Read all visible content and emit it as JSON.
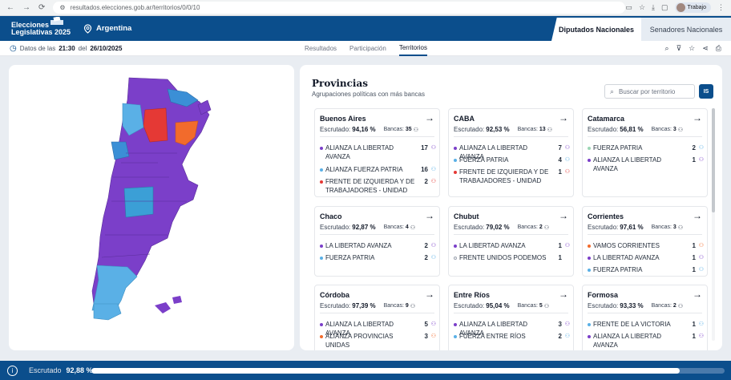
{
  "browser": {
    "url": "resultados.elecciones.gob.ar/territorios/0/0/10",
    "profile": "Trabajo"
  },
  "header": {
    "logo_line1": "Elecciones",
    "logo_line2": "Legislativas 2025",
    "region": "Argentina",
    "tabs": [
      {
        "label": "Diputados Nacionales",
        "active": true
      },
      {
        "label": "Senadores Nacionales",
        "active": false
      }
    ]
  },
  "subheader": {
    "prefix": "Datos de las",
    "time": "21:30",
    "mid": "del",
    "date": "26/10/2025",
    "view_tabs": [
      {
        "label": "Resultados",
        "active": false
      },
      {
        "label": "Participación",
        "active": false
      },
      {
        "label": "Territorios",
        "active": true
      }
    ],
    "tool_icons": [
      "search-icon",
      "filter-icon",
      "star-icon",
      "share-icon",
      "print-icon"
    ]
  },
  "colors": {
    "primary": "#0b4e8c",
    "la_libertad_avanza": "#7b3fc9",
    "fuerza_patria": "#5ab0e6",
    "fit": "#e53935",
    "provincias_unidas": "#f26b2c",
    "other_green": "#9bd6b5"
  },
  "provinces_panel": {
    "title": "Provincias",
    "subtitle": "Agrupaciones políticas con más bancas",
    "search_placeholder": "Buscar por territorio",
    "search_button": "IS",
    "scrutinized_label": "Escrutado:",
    "seats_label": "Bancas:",
    "cards": [
      {
        "name": "Buenos Aires",
        "scrutinized": "94,16 %",
        "seats": "35",
        "parties": [
          {
            "name": "ALIANZA LA LIBERTAD AVANZA",
            "seats": "17",
            "color": "#7b3fc9"
          },
          {
            "name": "ALIANZA FUERZA PATRIA",
            "seats": "16",
            "color": "#5ab0e6"
          },
          {
            "name": "FRENTE DE IZQUIERDA Y DE TRABAJADORES - UNIDAD",
            "seats": "2",
            "color": "#e53935"
          }
        ]
      },
      {
        "name": "CABA",
        "scrutinized": "92,53 %",
        "seats": "13",
        "parties": [
          {
            "name": "ALIANZA LA LIBERTAD AVANZA",
            "seats": "7",
            "color": "#7b3fc9"
          },
          {
            "name": "FUERZA PATRIA",
            "seats": "4",
            "color": "#5ab0e6"
          },
          {
            "name": "FRENTE DE IZQUIERDA Y DE TRABAJADORES - UNIDAD",
            "seats": "1",
            "color": "#e53935"
          }
        ]
      },
      {
        "name": "Catamarca",
        "scrutinized": "56,81 %",
        "seats": "3",
        "parties": [
          {
            "name": "FUERZA PATRIA",
            "seats": "2",
            "color": "#5ab0e6"
          },
          {
            "name": "ALIANZA LA LIBERTAD AVANZA",
            "seats": "1",
            "color": "#7b3fc9"
          }
        ]
      },
      {
        "name": "Chaco",
        "scrutinized": "92,87 %",
        "seats": "4",
        "parties": [
          {
            "name": "LA LIBERTAD AVANZA",
            "seats": "2",
            "color": "#7b3fc9"
          },
          {
            "name": "FUERZA PATRIA",
            "seats": "2",
            "color": "#5ab0e6"
          }
        ]
      },
      {
        "name": "Chubut",
        "scrutinized": "79,02 %",
        "seats": "2",
        "parties": [
          {
            "name": "LA LIBERTAD AVANZA",
            "seats": "1",
            "color": "#7b3fc9"
          },
          {
            "name": "FRENTE UNIDOS PODEMOS",
            "seats": "1",
            "color": "#ffffff"
          }
        ]
      },
      {
        "name": "Corrientes",
        "scrutinized": "97,61 %",
        "seats": "3",
        "parties": [
          {
            "name": "VAMOS CORRIENTES",
            "seats": "1",
            "color": "#f26b2c"
          },
          {
            "name": "LA LIBERTAD AVANZA",
            "seats": "1",
            "color": "#7b3fc9"
          },
          {
            "name": "FUERZA PATRIA",
            "seats": "1",
            "color": "#5ab0e6"
          }
        ]
      },
      {
        "name": "Córdoba",
        "scrutinized": "97,39 %",
        "seats": "9",
        "parties": [
          {
            "name": "ALIANZA LA LIBERTAD AVANZA",
            "seats": "5",
            "color": "#7b3fc9"
          },
          {
            "name": "ALIANZA PROVINCIAS UNIDAS",
            "seats": "3",
            "color": "#f26b2c"
          }
        ]
      },
      {
        "name": "Entre Ríos",
        "scrutinized": "95,04 %",
        "seats": "5",
        "parties": [
          {
            "name": "ALIANZA LA LIBERTAD AVANZA",
            "seats": "3",
            "color": "#7b3fc9"
          },
          {
            "name": "FUERZA ENTRE RÍOS",
            "seats": "2",
            "color": "#5ab0e6"
          }
        ]
      },
      {
        "name": "Formosa",
        "scrutinized": "93,33 %",
        "seats": "2",
        "parties": [
          {
            "name": "FRENTE DE LA VICTORIA",
            "seats": "1",
            "color": "#5ab0e6"
          },
          {
            "name": "ALIANZA LA LIBERTAD AVANZA",
            "seats": "1",
            "color": "#7b3fc9"
          }
        ]
      }
    ]
  },
  "bottombar": {
    "label": "Escrutado",
    "percent": "92,88 %",
    "progress_value": 0.9288
  }
}
